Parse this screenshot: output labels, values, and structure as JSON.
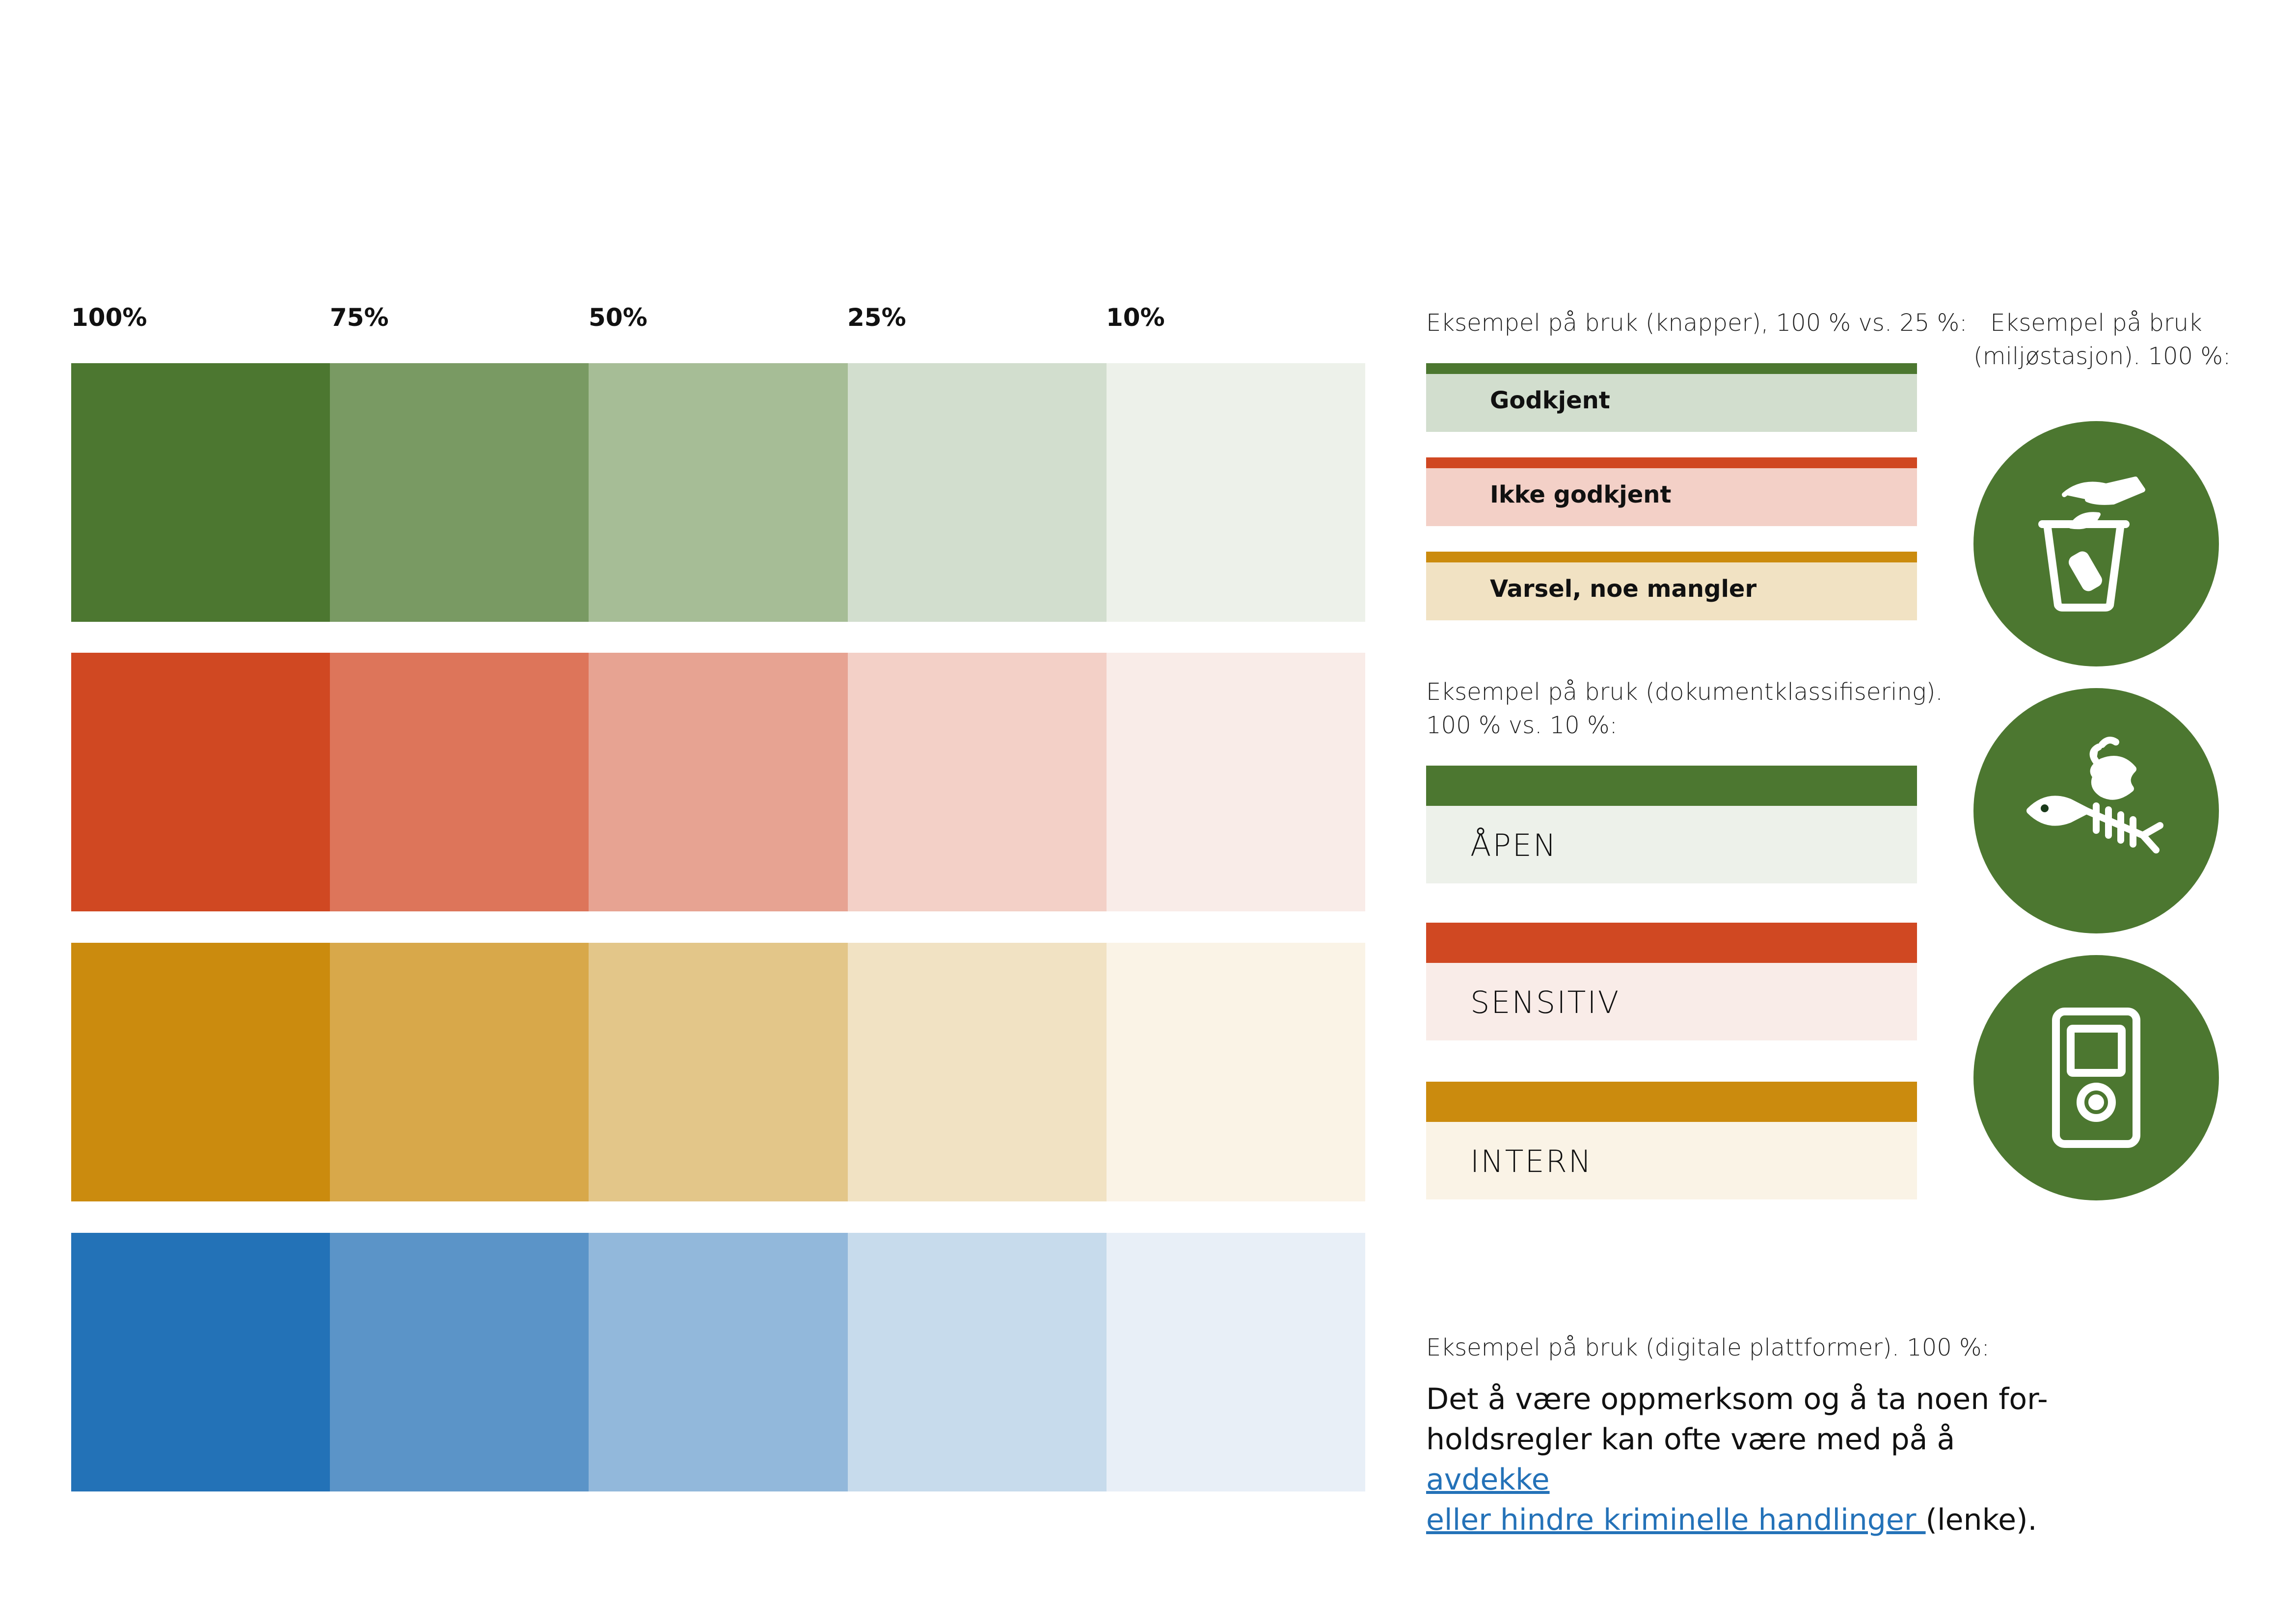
{
  "colors": {
    "green": [
      "#4c7730",
      "#799a63",
      "#a6bd96",
      "#d2dece",
      "#edf1ea"
    ],
    "red": [
      "#d04822",
      "#dd755a",
      "#e7a392",
      "#f3d0c7",
      "#f9ece8"
    ],
    "yellow": [
      "#cb8b0e",
      "#d8a84a",
      "#e3c689",
      "#f1e2c3",
      "#faf3e6"
    ],
    "blue": [
      "#2372b7",
      "#5b94c8",
      "#92b8db",
      "#c7dbec",
      "#e8eff7"
    ]
  },
  "percent_labels": [
    "100%",
    "75%",
    "50%",
    "25%",
    "10%"
  ],
  "buttons_example": {
    "caption": "Eksempel på bruk (knapper), 100 % vs. 25 %:",
    "items": [
      {
        "label": "Godkjent",
        "color": "green"
      },
      {
        "label": "Ikke godkjent",
        "color": "red"
      },
      {
        "label": "Varsel, noe mangler",
        "color": "yellow"
      }
    ]
  },
  "classification_example": {
    "caption_line1": "Eksempel på bruk (dokumentklassifisering).",
    "caption_line2": "100 % vs. 10 %:",
    "items": [
      {
        "label": "ÅPEN",
        "color": "green"
      },
      {
        "label": "SENSITIV",
        "color": "red"
      },
      {
        "label": "INTERN",
        "color": "yellow"
      }
    ]
  },
  "environment_example": {
    "caption_line1": "Eksempel på bruk",
    "caption_line2": "(miljøstasjon). 100 %:",
    "icons": [
      "recycling-bin-icon",
      "food-waste-icon",
      "electronics-icon"
    ]
  },
  "digital_example": {
    "caption": "Eksempel på bruk (digitale plattformer). 100 %:",
    "text_line1": "Det å være oppmerksom og å ta noen for-",
    "text_line2_before": "holdsregler kan ofte være med på å ",
    "link_part1": "avdekke ",
    "link_part2": "eller hindre kriminelle handlinger ",
    "text_after": "(lenke)."
  }
}
